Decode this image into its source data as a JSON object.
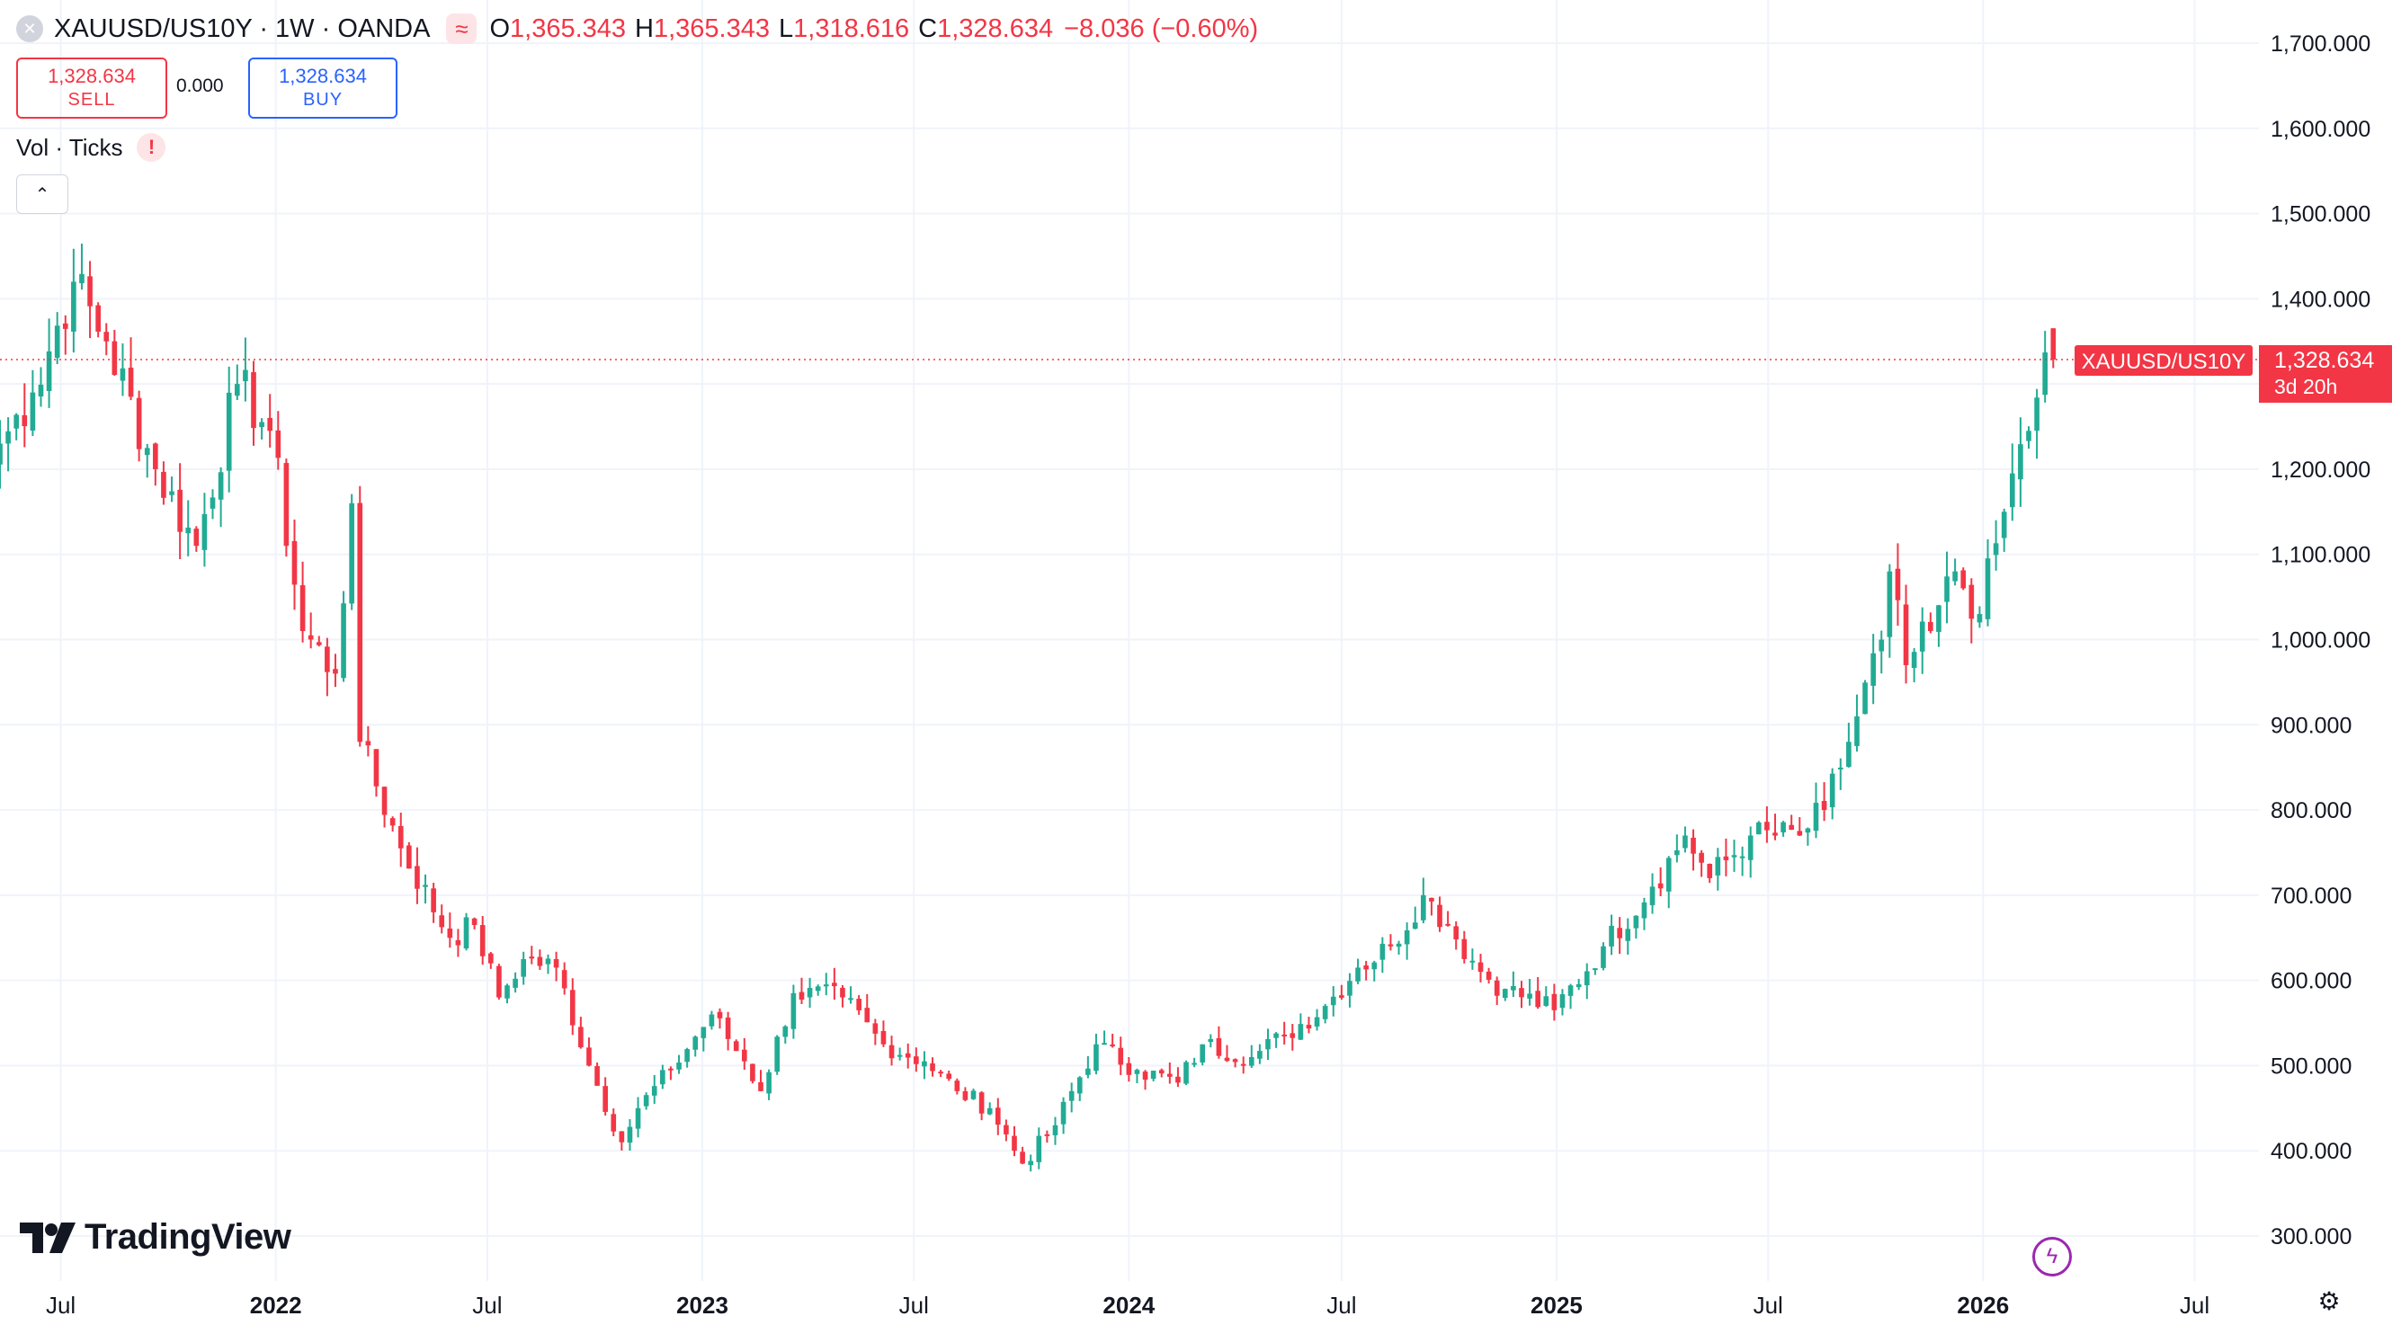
{
  "header": {
    "symbol": "XAUUSD/US10Y · 1W · OANDA",
    "o_label": "O",
    "o_value": "1,365.343",
    "h_label": "H",
    "h_value": "1,365.343",
    "l_label": "L",
    "l_value": "1,318.616",
    "c_label": "C",
    "c_value": "1,328.634",
    "change": "−8.036 (−0.60%)",
    "close_icon": "close-x-icon",
    "wave_icon": "approx-wave-icon"
  },
  "trade": {
    "sell_price": "1,328.634",
    "sell_label": "SELL",
    "spread": "0.000",
    "buy_price": "1,328.634",
    "buy_label": "BUY"
  },
  "indicator": {
    "label": "Vol · Ticks",
    "warn_icon": "exclamation-icon",
    "collapse_icon": "chevron-up-icon"
  },
  "logo_text": "TradingView",
  "price_tag": {
    "symbol": "XAUUSD/US10Y",
    "price": "1,328.634",
    "countdown": "3d 20h"
  },
  "colors": {
    "up": "#22ab94",
    "down": "#f23645",
    "grid": "#f0f3fa",
    "text": "#131722",
    "accent_blue": "#2962ff"
  },
  "chart_data": {
    "type": "candlestick",
    "interval": "1W",
    "ylim": [
      275,
      1720
    ],
    "y_ticks": [
      300,
      400,
      500,
      600,
      700,
      800,
      900,
      1000,
      1100,
      1200,
      1300,
      1400,
      1500,
      1600,
      1700
    ],
    "y_tick_labels": [
      "300.000",
      "400.000",
      "500.000",
      "600.000",
      "700.000",
      "800.000",
      "900.000",
      "1,000.000",
      "1,100.000",
      "1,200.000",
      "1,300.000",
      "1,400.000",
      "1,500.000",
      "1,600.000",
      "1,700.000"
    ],
    "x_ticks": [
      {
        "date": "2021-07-01",
        "label": "Jul",
        "bold": false
      },
      {
        "date": "2022-01-01",
        "label": "2022",
        "bold": true
      },
      {
        "date": "2022-07-01",
        "label": "Jul",
        "bold": false
      },
      {
        "date": "2023-01-01",
        "label": "2023",
        "bold": true
      },
      {
        "date": "2023-07-01",
        "label": "Jul",
        "bold": false
      },
      {
        "date": "2024-01-01",
        "label": "2024",
        "bold": true
      },
      {
        "date": "2024-07-01",
        "label": "Jul",
        "bold": false
      },
      {
        "date": "2025-01-01",
        "label": "2025",
        "bold": true
      },
      {
        "date": "2025-07-01",
        "label": "Jul",
        "bold": false
      },
      {
        "date": "2026-01-01",
        "label": "2026",
        "bold": true
      },
      {
        "date": "2026-07-01",
        "label": "Jul",
        "bold": false
      }
    ],
    "x_range": [
      "2021-05-10",
      "2026-08-25"
    ],
    "last_price": 1328.634,
    "anchors": [
      {
        "date": "2021-05-10",
        "close": 1230
      },
      {
        "date": "2021-06-07",
        "close": 1290
      },
      {
        "date": "2021-07-12",
        "close": 1420
      },
      {
        "date": "2021-08-09",
        "close": 1350
      },
      {
        "date": "2021-09-20",
        "close": 1200
      },
      {
        "date": "2021-10-25",
        "close": 1110
      },
      {
        "date": "2021-11-29",
        "close": 1300
      },
      {
        "date": "2021-12-27",
        "close": 1245
      },
      {
        "date": "2022-01-24",
        "close": 1010
      },
      {
        "date": "2022-02-21",
        "close": 960
      },
      {
        "date": "2022-03-07",
        "close": 1160
      },
      {
        "date": "2022-03-14",
        "close": 880
      },
      {
        "date": "2022-04-18",
        "close": 755
      },
      {
        "date": "2022-05-30",
        "close": 650
      },
      {
        "date": "2022-06-20",
        "close": 665
      },
      {
        "date": "2022-07-11",
        "close": 580
      },
      {
        "date": "2022-08-01",
        "close": 625
      },
      {
        "date": "2022-08-29",
        "close": 615
      },
      {
        "date": "2022-09-26",
        "close": 500
      },
      {
        "date": "2022-10-24",
        "close": 410
      },
      {
        "date": "2022-11-07",
        "close": 450
      },
      {
        "date": "2022-12-05",
        "close": 495
      },
      {
        "date": "2023-01-09",
        "close": 560
      },
      {
        "date": "2023-02-06",
        "close": 505
      },
      {
        "date": "2023-02-20",
        "close": 470
      },
      {
        "date": "2023-03-20",
        "close": 585
      },
      {
        "date": "2023-05-01",
        "close": 580
      },
      {
        "date": "2023-06-05",
        "close": 525
      },
      {
        "date": "2023-07-10",
        "close": 505
      },
      {
        "date": "2023-08-07",
        "close": 470
      },
      {
        "date": "2023-09-04",
        "close": 450
      },
      {
        "date": "2023-10-02",
        "close": 385
      },
      {
        "date": "2023-10-30",
        "close": 430
      },
      {
        "date": "2023-12-04",
        "close": 525
      },
      {
        "date": "2024-01-08",
        "close": 495
      },
      {
        "date": "2024-02-12",
        "close": 480
      },
      {
        "date": "2024-03-04",
        "close": 525
      },
      {
        "date": "2024-04-15",
        "close": 510
      },
      {
        "date": "2024-05-13",
        "close": 535
      },
      {
        "date": "2024-06-17",
        "close": 570
      },
      {
        "date": "2024-07-15",
        "close": 615
      },
      {
        "date": "2024-08-12",
        "close": 640
      },
      {
        "date": "2024-09-09",
        "close": 700
      },
      {
        "date": "2024-09-30",
        "close": 665
      },
      {
        "date": "2024-10-28",
        "close": 610
      },
      {
        "date": "2024-11-18",
        "close": 590
      },
      {
        "date": "2024-12-30",
        "close": 565
      },
      {
        "date": "2025-02-10",
        "close": 640
      },
      {
        "date": "2025-03-24",
        "close": 710
      },
      {
        "date": "2025-04-21",
        "close": 770
      },
      {
        "date": "2025-05-12",
        "close": 720
      },
      {
        "date": "2025-06-16",
        "close": 770
      },
      {
        "date": "2025-07-28",
        "close": 770
      },
      {
        "date": "2025-08-18",
        "close": 800
      },
      {
        "date": "2025-09-08",
        "close": 880
      },
      {
        "date": "2025-10-06",
        "close": 1000
      },
      {
        "date": "2025-10-13",
        "close": 1080
      },
      {
        "date": "2025-10-27",
        "close": 970
      },
      {
        "date": "2025-11-17",
        "close": 1010
      },
      {
        "date": "2025-12-08",
        "close": 1080
      },
      {
        "date": "2025-12-29",
        "close": 1030
      },
      {
        "date": "2026-01-19",
        "close": 1150
      },
      {
        "date": "2026-01-26",
        "close": 1195
      },
      {
        "date": "2026-02-09",
        "close": 1245
      },
      {
        "date": "2026-02-23",
        "close": 1337
      },
      {
        "date": "2026-03-02",
        "close": 1328.634
      }
    ]
  }
}
